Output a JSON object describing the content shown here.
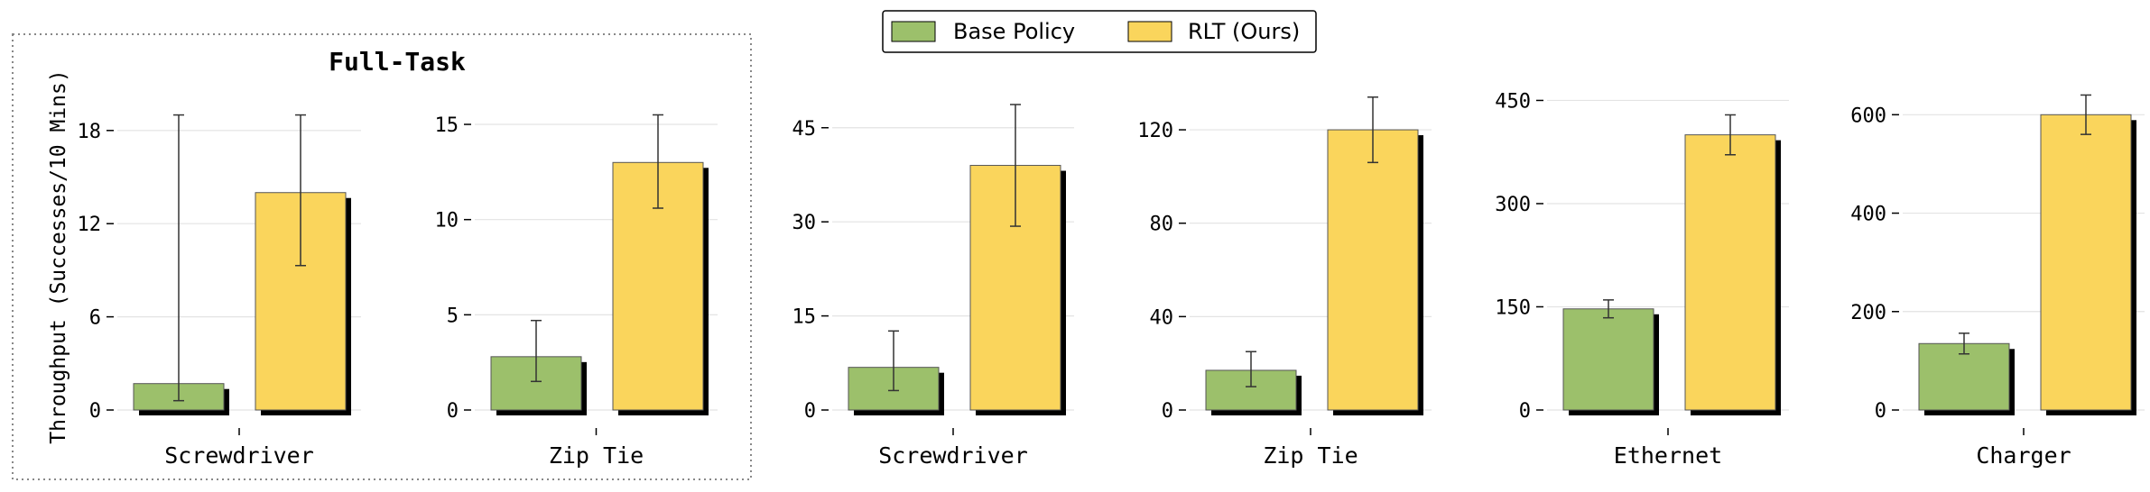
{
  "legend": {
    "items": [
      {
        "label": "Base Policy",
        "color": "#9cc06b"
      },
      {
        "label": "RLT (Ours)",
        "color": "#fad55c"
      }
    ]
  },
  "group": {
    "title": "Full-Task"
  },
  "y_axis_label": "Throughput (Successes/10 Mins)",
  "colors": {
    "base": "#9cc06b",
    "rlt": "#fad55c",
    "shadow": "#000000",
    "grid": "#e3e3e3",
    "border": "#888888"
  },
  "chart_data": [
    {
      "type": "bar",
      "xlabel": "Screwdriver",
      "categories": [
        "Base Policy",
        "RLT (Ours)"
      ],
      "values": [
        1.7,
        14.0
      ],
      "errors": [
        [
          0.6,
          19.0
        ],
        [
          9.3,
          19.0
        ]
      ],
      "yticks": [
        0,
        6,
        12,
        18
      ],
      "ylim": [
        0,
        20.6
      ]
    },
    {
      "type": "bar",
      "xlabel": "Zip Tie",
      "categories": [
        "Base Policy",
        "RLT (Ours)"
      ],
      "values": [
        2.8,
        13.0
      ],
      "errors": [
        [
          1.5,
          4.7
        ],
        [
          10.6,
          15.5
        ]
      ],
      "yticks": [
        0,
        5,
        10,
        15
      ],
      "ylim": [
        0,
        16.8
      ]
    },
    {
      "type": "bar",
      "xlabel": "Screwdriver",
      "categories": [
        "Base Policy",
        "RLT (Ours)"
      ],
      "values": [
        6.8,
        39.0
      ],
      "errors": [
        [
          3.1,
          12.6
        ],
        [
          29.3,
          48.7
        ]
      ],
      "yticks": [
        0,
        15,
        30,
        45
      ],
      "ylim": [
        0,
        51
      ]
    },
    {
      "type": "bar",
      "xlabel": "Zip Tie",
      "categories": [
        "Base Policy",
        "RLT (Ours)"
      ],
      "values": [
        17.0,
        120.0
      ],
      "errors": [
        [
          10.0,
          25.0
        ],
        [
          106.0,
          134.0
        ]
      ],
      "yticks": [
        0,
        40,
        80,
        120
      ],
      "ylim": [
        0,
        137
      ]
    },
    {
      "type": "bar",
      "xlabel": "Ethernet",
      "categories": [
        "Base Policy",
        "RLT (Ours)"
      ],
      "values": [
        147.0,
        400.0
      ],
      "errors": [
        [
          134.0,
          160.0
        ],
        [
          371.0,
          429.0
        ]
      ],
      "yticks": [
        0,
        150,
        300,
        450
      ],
      "ylim": [
        0,
        465
      ]
    },
    {
      "type": "bar",
      "xlabel": "Charger",
      "categories": [
        "Base Policy",
        "RLT (Ours)"
      ],
      "values": [
        135.0,
        600.0
      ],
      "errors": [
        [
          114.0,
          156.0
        ],
        [
          560.0,
          640.0
        ]
      ],
      "yticks": [
        0,
        200,
        400,
        600
      ],
      "ylim": [
        0,
        650
      ]
    }
  ]
}
